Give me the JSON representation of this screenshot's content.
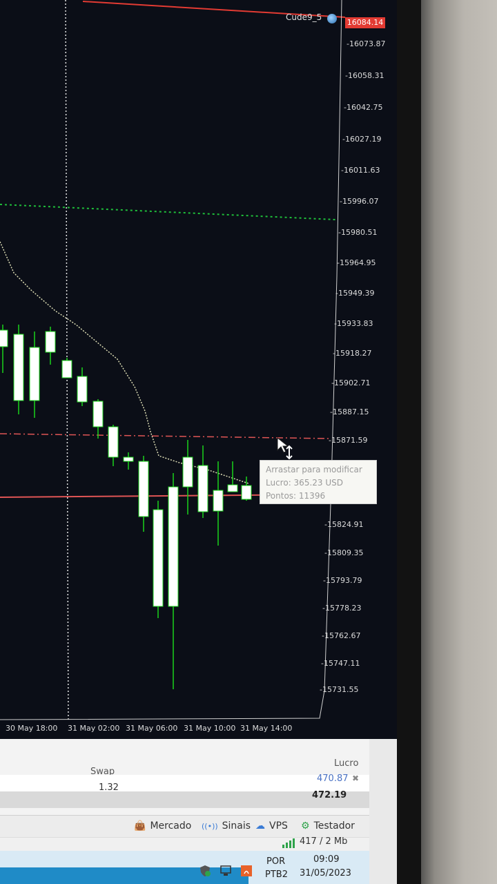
{
  "chart": {
    "symbol": "Cude9_5",
    "current_price_tag": "16084.14",
    "price_ticks": [
      "16073.87",
      "16058.31",
      "16042.75",
      "16027.19",
      "16011.63",
      "15996.07",
      "15980.51",
      "15964.95",
      "15949.39",
      "15933.83",
      "15918.27",
      "15902.71",
      "15887.15",
      "15871.59",
      "15824.91",
      "15809.35",
      "15793.79",
      "15778.23",
      "15762.67",
      "15747.11",
      "15731.55"
    ],
    "time_ticks": [
      "30 May 18:00",
      "31 May 02:00",
      "31 May 06:00",
      "31 May 10:00",
      "31 May 14:00"
    ],
    "colors": {
      "background": "#0b0e17",
      "bull": "#1bd31b",
      "candle_body": "#ffffff",
      "take_profit_line": "#1fbf3a",
      "entry_line": "#e05555",
      "current_price": "#e33b33",
      "ma_line": "#dcdcb4"
    }
  },
  "tooltip": {
    "line1": "Arrastar para modificar",
    "line2": "Lucro: 365.23 USD",
    "line3": "Pontos: 11396"
  },
  "positions": {
    "columns": {
      "swap": "Swap",
      "lucro": "Lucro"
    },
    "row": {
      "swap": "1.32",
      "lucro": "470.87"
    },
    "total_lucro": "472.19"
  },
  "tabs": [
    {
      "label": "Mercado",
      "icon": "shopping-bag-icon"
    },
    {
      "label": "Sinais",
      "icon": "signal-broadcast-icon"
    },
    {
      "label": "VPS",
      "icon": "cloud-icon"
    },
    {
      "label": "Testador",
      "icon": "gear-icon"
    }
  ],
  "status": {
    "connection": "417 / 2 Mb"
  },
  "taskbar": {
    "lang_line1": "POR",
    "lang_line2": "PTB2",
    "time": "09:09",
    "date": "31/05/2023"
  }
}
